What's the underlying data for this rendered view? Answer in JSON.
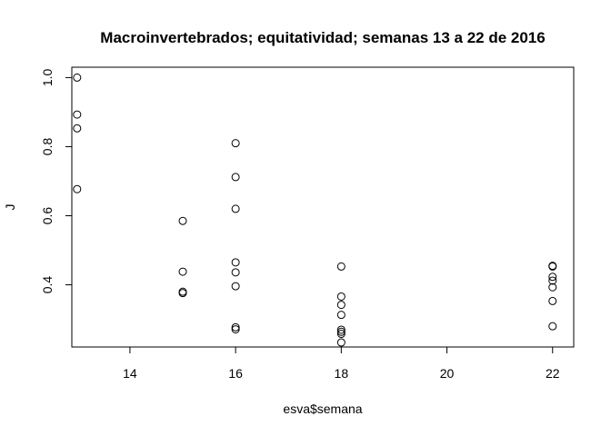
{
  "chart_data": {
    "type": "scatter",
    "title": "Macroinvertebrados; equitatividad; semanas 13 a 22 de 2016",
    "xlabel": "esva$semana",
    "ylabel": "J",
    "xlim": [
      12.9,
      22.4
    ],
    "ylim": [
      0.22,
      1.03
    ],
    "x_ticks": [
      14,
      16,
      18,
      20,
      22
    ],
    "x_tick_labels": [
      "14",
      "16",
      "18",
      "20",
      "22"
    ],
    "y_ticks": [
      0.4,
      0.6,
      0.8,
      1.0
    ],
    "y_tick_labels": [
      "0.4",
      "0.6",
      "0.8",
      "1.0"
    ],
    "grid": false,
    "marker": "open-circle",
    "points": [
      {
        "x": 13,
        "y": 1.0
      },
      {
        "x": 13,
        "y": 0.893
      },
      {
        "x": 13,
        "y": 0.853
      },
      {
        "x": 13,
        "y": 0.677
      },
      {
        "x": 15,
        "y": 0.585
      },
      {
        "x": 15,
        "y": 0.438
      },
      {
        "x": 15,
        "y": 0.38
      },
      {
        "x": 15,
        "y": 0.376
      },
      {
        "x": 16,
        "y": 0.81
      },
      {
        "x": 16,
        "y": 0.712
      },
      {
        "x": 16,
        "y": 0.62
      },
      {
        "x": 16,
        "y": 0.465
      },
      {
        "x": 16,
        "y": 0.436
      },
      {
        "x": 16,
        "y": 0.396
      },
      {
        "x": 16,
        "y": 0.277
      },
      {
        "x": 16,
        "y": 0.271
      },
      {
        "x": 18,
        "y": 0.453
      },
      {
        "x": 18,
        "y": 0.366
      },
      {
        "x": 18,
        "y": 0.342
      },
      {
        "x": 18,
        "y": 0.313
      },
      {
        "x": 18,
        "y": 0.27
      },
      {
        "x": 18,
        "y": 0.264
      },
      {
        "x": 18,
        "y": 0.258
      },
      {
        "x": 18,
        "y": 0.233
      },
      {
        "x": 22,
        "y": 0.455
      },
      {
        "x": 22,
        "y": 0.453
      },
      {
        "x": 22,
        "y": 0.423
      },
      {
        "x": 22,
        "y": 0.412
      },
      {
        "x": 22,
        "y": 0.393
      },
      {
        "x": 22,
        "y": 0.353
      },
      {
        "x": 22,
        "y": 0.28
      }
    ]
  }
}
